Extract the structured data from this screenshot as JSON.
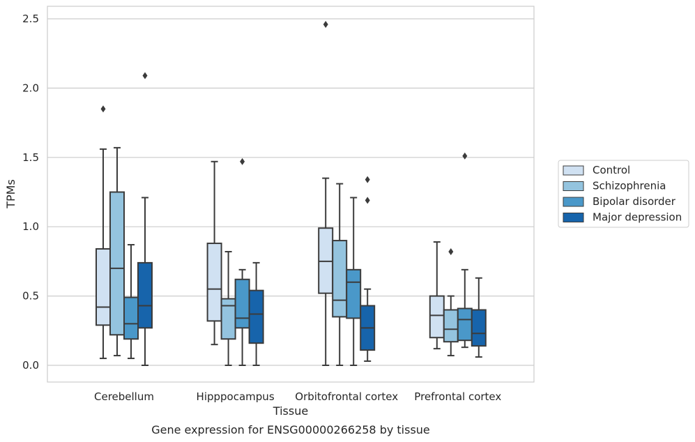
{
  "caption": "Gene expression for ENSG00000266258 by tissue",
  "chart_data": {
    "type": "box",
    "title": "",
    "xlabel": "Tissue",
    "ylabel": "TPMs",
    "ylim": [
      -0.12,
      2.6
    ],
    "yticks": [
      0.0,
      0.5,
      1.0,
      1.5,
      2.0,
      2.5
    ],
    "ytick_labels": [
      "0.0",
      "0.5",
      "1.0",
      "1.5",
      "2.0",
      "2.5"
    ],
    "grid": true,
    "legend_position": "right",
    "categories": [
      "Cerebellum",
      "Hipppocampus",
      "Orbitofrontal cortex",
      "Prefrontal cortex"
    ],
    "series": [
      {
        "name": "Control",
        "color": "#d0e1f2",
        "boxes": [
          {
            "whisker_low": 0.05,
            "q1": 0.29,
            "median": 0.42,
            "q3": 0.84,
            "whisker_high": 1.56,
            "outliers": [
              1.85
            ]
          },
          {
            "whisker_low": 0.15,
            "q1": 0.32,
            "median": 0.55,
            "q3": 0.88,
            "whisker_high": 1.47,
            "outliers": []
          },
          {
            "whisker_low": 0.0,
            "q1": 0.52,
            "median": 0.75,
            "q3": 0.99,
            "whisker_high": 1.35,
            "outliers": [
              2.46
            ]
          },
          {
            "whisker_low": 0.12,
            "q1": 0.2,
            "median": 0.36,
            "q3": 0.5,
            "whisker_high": 0.89,
            "outliers": []
          }
        ]
      },
      {
        "name": "Schizophrenia",
        "color": "#94c4df",
        "boxes": [
          {
            "whisker_low": 0.07,
            "q1": 0.22,
            "median": 0.7,
            "q3": 1.25,
            "whisker_high": 1.57,
            "outliers": []
          },
          {
            "whisker_low": 0.0,
            "q1": 0.19,
            "median": 0.43,
            "q3": 0.48,
            "whisker_high": 0.82,
            "outliers": []
          },
          {
            "whisker_low": 0.0,
            "q1": 0.35,
            "median": 0.47,
            "q3": 0.9,
            "whisker_high": 1.31,
            "outliers": []
          },
          {
            "whisker_low": 0.07,
            "q1": 0.17,
            "median": 0.26,
            "q3": 0.4,
            "whisker_high": 0.5,
            "outliers": [
              0.82
            ]
          }
        ]
      },
      {
        "name": "Bipolar disorder",
        "color": "#4a98c9",
        "boxes": [
          {
            "whisker_low": 0.05,
            "q1": 0.19,
            "median": 0.3,
            "q3": 0.49,
            "whisker_high": 0.87,
            "outliers": []
          },
          {
            "whisker_low": 0.0,
            "q1": 0.27,
            "median": 0.34,
            "q3": 0.62,
            "whisker_high": 0.69,
            "outliers": [
              1.47
            ]
          },
          {
            "whisker_low": 0.0,
            "q1": 0.34,
            "median": 0.6,
            "q3": 0.69,
            "whisker_high": 1.21,
            "outliers": []
          },
          {
            "whisker_low": 0.13,
            "q1": 0.18,
            "median": 0.33,
            "q3": 0.41,
            "whisker_high": 0.69,
            "outliers": [
              1.51
            ]
          }
        ]
      },
      {
        "name": "Major depression",
        "color": "#1764ab",
        "boxes": [
          {
            "whisker_low": 0.0,
            "q1": 0.27,
            "median": 0.43,
            "q3": 0.74,
            "whisker_high": 1.21,
            "outliers": [
              2.09
            ]
          },
          {
            "whisker_low": 0.0,
            "q1": 0.16,
            "median": 0.37,
            "q3": 0.54,
            "whisker_high": 0.74,
            "outliers": []
          },
          {
            "whisker_low": 0.03,
            "q1": 0.11,
            "median": 0.27,
            "q3": 0.43,
            "whisker_high": 0.55,
            "outliers": [
              1.19,
              1.34
            ]
          },
          {
            "whisker_low": 0.06,
            "q1": 0.14,
            "median": 0.23,
            "q3": 0.4,
            "whisker_high": 0.63,
            "outliers": []
          }
        ]
      }
    ]
  }
}
